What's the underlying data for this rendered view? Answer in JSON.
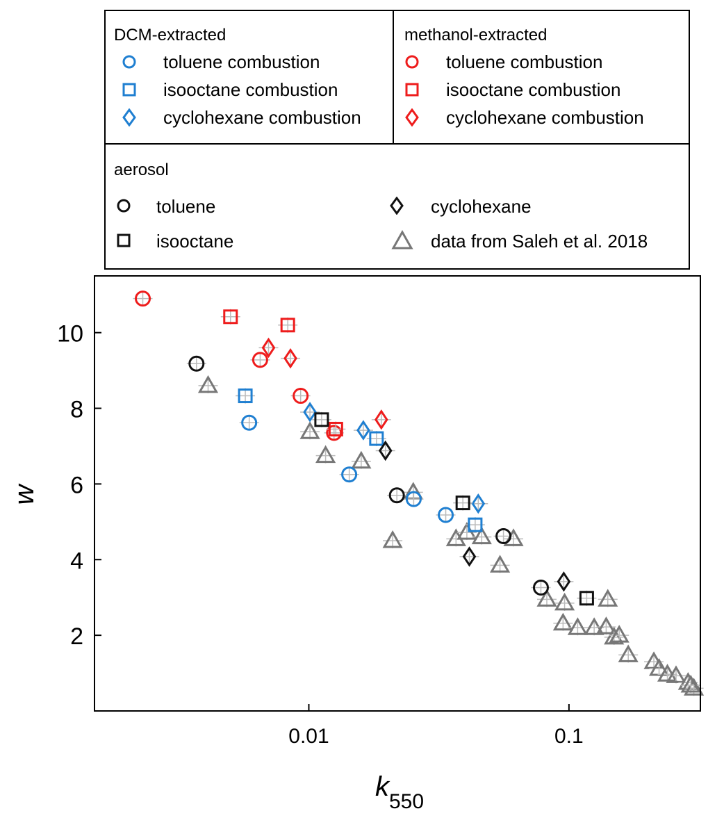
{
  "legend": {
    "dcm_title": "DCM-extracted",
    "methanol_title": "methanol-extracted",
    "aerosol_title": "aerosol",
    "dcm_items": [
      {
        "label": "toluene combustion",
        "marker": "circle-icon",
        "color": "#1f7fd1"
      },
      {
        "label": "isooctane combustion",
        "marker": "square-icon",
        "color": "#1f7fd1"
      },
      {
        "label": "cyclohexane combustion",
        "marker": "diamond-icon",
        "color": "#1f7fd1"
      }
    ],
    "methanol_items": [
      {
        "label": "toluene combustion",
        "marker": "circle-icon",
        "color": "#ee1c1c"
      },
      {
        "label": "isooctane combustion",
        "marker": "square-icon",
        "color": "#ee1c1c"
      },
      {
        "label": "cyclohexane combustion",
        "marker": "diamond-icon",
        "color": "#ee1c1c"
      }
    ],
    "aerosol_items": [
      {
        "label": "toluene",
        "marker": "circle-icon",
        "color": "#111111"
      },
      {
        "label": "isooctane",
        "marker": "square-icon",
        "color": "#111111"
      },
      {
        "label": "cyclohexane",
        "marker": "diamond-icon",
        "color": "#111111"
      },
      {
        "label": "data from Saleh et al. 2018",
        "marker": "triangle-icon",
        "color": "#777777"
      }
    ]
  },
  "chart_data": {
    "type": "scatter",
    "xscale": "log",
    "xlabel_main": "k",
    "xlabel_sub": "550",
    "ylabel": "w",
    "xlim": [
      0.0015,
      0.32
    ],
    "ylim": [
      0,
      11.5
    ],
    "xticks": [
      {
        "value": 0.01,
        "label": "0.01"
      },
      {
        "value": 0.1,
        "label": "0.1"
      }
    ],
    "yticks": [
      {
        "value": 2,
        "label": "2"
      },
      {
        "value": 4,
        "label": "4"
      },
      {
        "value": 6,
        "label": "6"
      },
      {
        "value": 8,
        "label": "8"
      },
      {
        "value": 10,
        "label": "10"
      }
    ],
    "series": [
      {
        "name": "DCM-extracted toluene combustion",
        "marker": "circle",
        "color": "#1f7fd1",
        "points": [
          [
            0.0059,
            7.62
          ],
          [
            0.0143,
            6.25
          ],
          [
            0.0253,
            5.6
          ],
          [
            0.0336,
            5.18
          ]
        ]
      },
      {
        "name": "DCM-extracted isooctane combustion",
        "marker": "square",
        "color": "#1f7fd1",
        "points": [
          [
            0.0057,
            8.33
          ],
          [
            0.0182,
            7.2
          ],
          [
            0.0436,
            4.92
          ]
        ]
      },
      {
        "name": "DCM-extracted cyclohexane combustion",
        "marker": "diamond",
        "color": "#1f7fd1",
        "points": [
          [
            0.0101,
            7.9
          ],
          [
            0.0162,
            7.42
          ],
          [
            0.0448,
            5.48
          ]
        ]
      },
      {
        "name": "methanol-extracted toluene combustion",
        "marker": "circle",
        "color": "#ee1c1c",
        "points": [
          [
            0.0023,
            10.9
          ],
          [
            0.0065,
            9.28
          ],
          [
            0.0093,
            8.33
          ],
          [
            0.0125,
            7.35
          ]
        ]
      },
      {
        "name": "methanol-extracted isooctane combustion",
        "marker": "square",
        "color": "#ee1c1c",
        "points": [
          [
            0.005,
            10.42
          ],
          [
            0.0083,
            10.2
          ],
          [
            0.0127,
            7.45
          ]
        ]
      },
      {
        "name": "methanol-extracted cyclohexane combustion",
        "marker": "diamond",
        "color": "#ee1c1c",
        "points": [
          [
            0.007,
            9.6
          ],
          [
            0.0085,
            9.32
          ],
          [
            0.019,
            7.7
          ]
        ]
      },
      {
        "name": "aerosol toluene",
        "marker": "circle",
        "color": "#111111",
        "points": [
          [
            0.0037,
            9.18
          ],
          [
            0.0218,
            5.7
          ],
          [
            0.056,
            4.62
          ],
          [
            0.078,
            3.26
          ]
        ]
      },
      {
        "name": "aerosol isooctane",
        "marker": "square",
        "color": "#111111",
        "points": [
          [
            0.0112,
            7.7
          ],
          [
            0.0391,
            5.5
          ],
          [
            0.117,
            2.98
          ]
        ]
      },
      {
        "name": "aerosol cyclohexane",
        "marker": "diamond",
        "color": "#111111",
        "points": [
          [
            0.0197,
            6.88
          ],
          [
            0.0414,
            4.08
          ],
          [
            0.0955,
            3.42
          ]
        ]
      },
      {
        "name": "data from Saleh et al. 2018",
        "marker": "triangle",
        "color": "#777777",
        "points": [
          [
            0.0041,
            8.6
          ],
          [
            0.0101,
            7.38
          ],
          [
            0.0116,
            6.75
          ],
          [
            0.0159,
            6.6
          ],
          [
            0.021,
            4.5
          ],
          [
            0.0252,
            5.78
          ],
          [
            0.0368,
            4.55
          ],
          [
            0.0405,
            4.72
          ],
          [
            0.0462,
            4.6
          ],
          [
            0.0612,
            4.55
          ],
          [
            0.0543,
            3.85
          ],
          [
            0.0822,
            2.95
          ],
          [
            0.0962,
            2.85
          ],
          [
            0.0949,
            2.32
          ],
          [
            0.108,
            2.2
          ],
          [
            0.125,
            2.2
          ],
          [
            0.139,
            2.22
          ],
          [
            0.141,
            2.95
          ],
          [
            0.149,
            1.95
          ],
          [
            0.156,
            2.0
          ],
          [
            0.169,
            1.48
          ],
          [
            0.212,
            1.3
          ],
          [
            0.222,
            1.12
          ],
          [
            0.239,
            0.97
          ],
          [
            0.258,
            0.93
          ],
          [
            0.287,
            0.75
          ],
          [
            0.302,
            0.6
          ],
          [
            0.294,
            0.68
          ]
        ]
      }
    ]
  }
}
